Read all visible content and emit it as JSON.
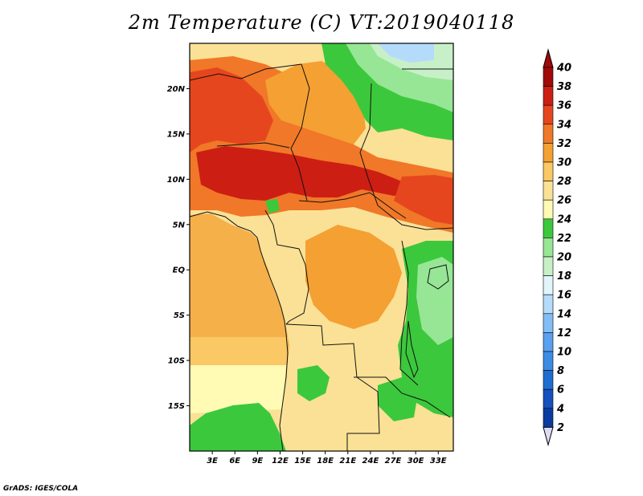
{
  "title": "2m Temperature (C) VT:2019040118",
  "credit": "GrADS: IGES/COLA",
  "map": {
    "lon_min": 0,
    "lon_max": 35,
    "lat_min": -20,
    "lat_max": 25,
    "lat_ticks": [
      {
        "value": 20,
        "label": "20N"
      },
      {
        "value": 15,
        "label": "15N"
      },
      {
        "value": 10,
        "label": "10N"
      },
      {
        "value": 5,
        "label": "5N"
      },
      {
        "value": 0,
        "label": "EQ"
      },
      {
        "value": -5,
        "label": "5S"
      },
      {
        "value": -10,
        "label": "10S"
      },
      {
        "value": -15,
        "label": "15S"
      }
    ],
    "lon_ticks": [
      {
        "value": 3,
        "label": "3E"
      },
      {
        "value": 6,
        "label": "6E"
      },
      {
        "value": 9,
        "label": "9E"
      },
      {
        "value": 12,
        "label": "12E"
      },
      {
        "value": 15,
        "label": "15E"
      },
      {
        "value": 18,
        "label": "18E"
      },
      {
        "value": 21,
        "label": "21E"
      },
      {
        "value": 24,
        "label": "24E"
      },
      {
        "value": 27,
        "label": "27E"
      },
      {
        "value": 30,
        "label": "30E"
      },
      {
        "value": 33,
        "label": "33E"
      }
    ]
  },
  "colorbar": {
    "levels": [
      {
        "value": "2",
        "color": "#000a6e"
      },
      {
        "value": "4",
        "color": "#0a3ca0"
      },
      {
        "value": "6",
        "color": "#1450be"
      },
      {
        "value": "8",
        "color": "#1e6ed2"
      },
      {
        "value": "10",
        "color": "#3c8ce6"
      },
      {
        "value": "12",
        "color": "#5aa0f0"
      },
      {
        "value": "14",
        "color": "#82bef5"
      },
      {
        "value": "16",
        "color": "#b4dcfa"
      },
      {
        "value": "18",
        "color": "#e1f5fa"
      },
      {
        "value": "20",
        "color": "#c8f0c8"
      },
      {
        "value": "22",
        "color": "#96e696"
      },
      {
        "value": "24",
        "color": "#3cc83c"
      },
      {
        "value": "26",
        "color": "#fffab4"
      },
      {
        "value": "28",
        "color": "#fae196"
      },
      {
        "value": "30",
        "color": "#fac864"
      },
      {
        "value": "32",
        "color": "#f5a032"
      },
      {
        "value": "34",
        "color": "#f07828"
      },
      {
        "value": "36",
        "color": "#e6461e"
      },
      {
        "value": "38",
        "color": "#cd1e14"
      },
      {
        "value": "40",
        "color": "#a00a0a"
      }
    ]
  }
}
